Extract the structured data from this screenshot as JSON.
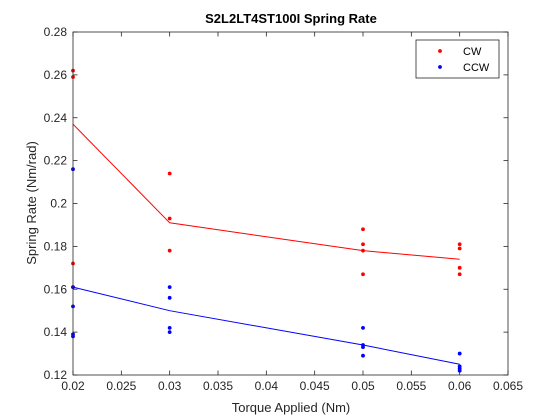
{
  "chart_data": {
    "type": "scatter",
    "title": "S2L2LT4ST100I Spring Rate",
    "xlabel": "Torque Applied (Nm)",
    "ylabel": "Spring Rate (Nm/rad)",
    "xlim": [
      0.02,
      0.065
    ],
    "ylim": [
      0.12,
      0.28
    ],
    "xticks": [
      "0.02",
      "0.025",
      "0.03",
      "0.035",
      "0.04",
      "0.045",
      "0.05",
      "0.055",
      "0.06",
      "0.065"
    ],
    "yticks": [
      "0.12",
      "0.14",
      "0.16",
      "0.18",
      "0.2",
      "0.22",
      "0.24",
      "0.26",
      "0.28"
    ],
    "legend_position": "top-right",
    "grid": false,
    "series": [
      {
        "name": "CW",
        "color": "#ff0000",
        "points": [
          [
            0.02,
            0.262
          ],
          [
            0.02,
            0.259
          ],
          [
            0.02,
            0.172
          ],
          [
            0.02,
            0.161
          ],
          [
            0.03,
            0.214
          ],
          [
            0.03,
            0.193
          ],
          [
            0.03,
            0.178
          ],
          [
            0.05,
            0.188
          ],
          [
            0.05,
            0.181
          ],
          [
            0.05,
            0.178
          ],
          [
            0.05,
            0.167
          ],
          [
            0.06,
            0.181
          ],
          [
            0.06,
            0.179
          ],
          [
            0.06,
            0.17
          ],
          [
            0.06,
            0.167
          ]
        ],
        "fit": [
          [
            0.02,
            0.237
          ],
          [
            0.03,
            0.191
          ],
          [
            0.05,
            0.178
          ],
          [
            0.06,
            0.174
          ]
        ]
      },
      {
        "name": "CCW",
        "color": "#0000ff",
        "points": [
          [
            0.02,
            0.216
          ],
          [
            0.02,
            0.161
          ],
          [
            0.02,
            0.152
          ],
          [
            0.02,
            0.139
          ],
          [
            0.02,
            0.138
          ],
          [
            0.03,
            0.161
          ],
          [
            0.03,
            0.156
          ],
          [
            0.03,
            0.142
          ],
          [
            0.03,
            0.14
          ],
          [
            0.05,
            0.142
          ],
          [
            0.05,
            0.134
          ],
          [
            0.05,
            0.133
          ],
          [
            0.05,
            0.129
          ],
          [
            0.06,
            0.13
          ],
          [
            0.06,
            0.124
          ],
          [
            0.06,
            0.123
          ],
          [
            0.06,
            0.122
          ]
        ],
        "fit": [
          [
            0.02,
            0.161
          ],
          [
            0.03,
            0.15
          ],
          [
            0.05,
            0.134
          ],
          [
            0.06,
            0.125
          ]
        ]
      }
    ]
  }
}
